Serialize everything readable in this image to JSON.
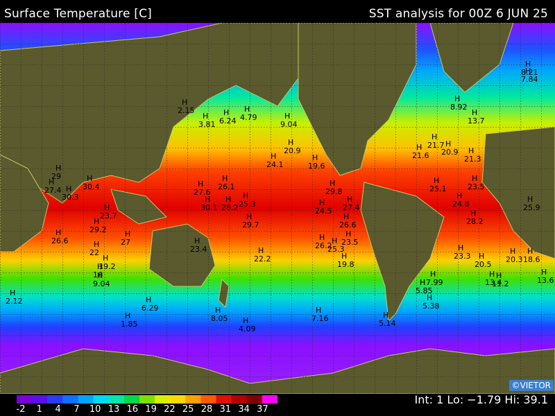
{
  "header": {
    "title_left": "Surface Temperature [C]",
    "title_right": "SST analysis for 00Z  6 JUN 25"
  },
  "legend": {
    "ticks": [
      "-2",
      "1",
      "4",
      "7",
      "10",
      "13",
      "16",
      "19",
      "22",
      "25",
      "28",
      "31",
      "34",
      "37"
    ],
    "colors": [
      "#7a00d8",
      "#5a10e6",
      "#2a3cf0",
      "#1070ff",
      "#00a4ff",
      "#00d8f0",
      "#00e8a8",
      "#00d848",
      "#7ce000",
      "#d8f000",
      "#ffd800",
      "#ffa000",
      "#ff5a00",
      "#e01000",
      "#b00000",
      "#800000",
      "#ff00ff"
    ]
  },
  "stats": {
    "text": "Int: 1 Lo: −1.79 Hi: 39.1"
  },
  "credit": {
    "text": "©VIETOR"
  },
  "map_labels": {
    "marker": "H",
    "values": [
      "2.15",
      "3.81",
      "6.24",
      "4.79",
      "9.04",
      "8.92",
      "13.7",
      "7.84",
      "8.21",
      "21.7",
      "20.9",
      "21.3",
      "21.6",
      "20.9",
      "19.6",
      "24.1",
      "29",
      "27.4",
      "30.3",
      "30.4",
      "27.6",
      "26.1",
      "28.2",
      "25.3",
      "29.8",
      "25.1",
      "23.5",
      "24.8",
      "30.1",
      "23.7",
      "29.2",
      "27",
      "26.6",
      "29.7",
      "24.5",
      "27.4",
      "26.6",
      "23.5",
      "26.2",
      "25.3",
      "28.2",
      "25.9",
      "23.4",
      "22.2",
      "19.8",
      "19.2",
      "16",
      "9.04",
      "13.4",
      "11.2",
      "13.6",
      "6.29",
      "8.05",
      "4.09",
      "7.16",
      "5.14",
      "5.38",
      "5.85",
      "7.99",
      "1.85",
      "2.12",
      "22",
      "20.5",
      "20.3",
      "18.6",
      "23.3"
    ]
  }
}
